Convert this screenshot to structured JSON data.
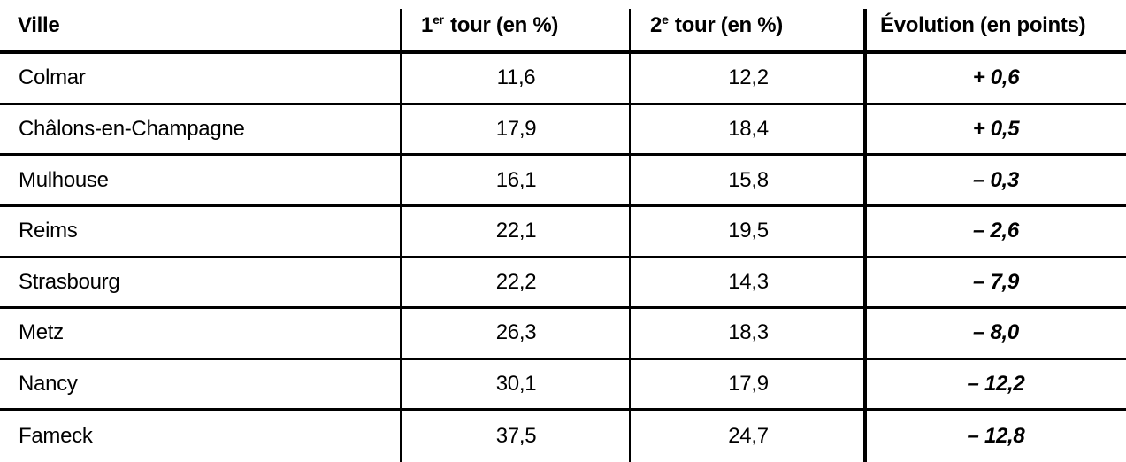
{
  "colors": {
    "text": "#000000",
    "lines": "#000000",
    "background": "#ffffff"
  },
  "table": {
    "columns": [
      {
        "label": "Ville"
      },
      {
        "base": "1",
        "sup": "er",
        "rest": " tour (en %)"
      },
      {
        "base": "2",
        "sup": "e",
        "rest": " tour (en %)"
      },
      {
        "label": "Évolution (en points)"
      }
    ],
    "rows": [
      {
        "ville": "Colmar",
        "tour1": "11,6",
        "tour2": "12,2",
        "evolution": "+ 0,6"
      },
      {
        "ville": "Châlons-en-Champagne",
        "tour1": "17,9",
        "tour2": "18,4",
        "evolution": "+ 0,5"
      },
      {
        "ville": "Mulhouse",
        "tour1": "16,1",
        "tour2": "15,8",
        "evolution": "– 0,3"
      },
      {
        "ville": "Reims",
        "tour1": "22,1",
        "tour2": "19,5",
        "evolution": "– 2,6"
      },
      {
        "ville": "Strasbourg",
        "tour1": "22,2",
        "tour2": "14,3",
        "evolution": "– 7,9"
      },
      {
        "ville": "Metz",
        "tour1": "26,3",
        "tour2": "18,3",
        "evolution": "– 8,0"
      },
      {
        "ville": "Nancy",
        "tour1": "30,1",
        "tour2": "17,9",
        "evolution": "– 12,2"
      },
      {
        "ville": "Fameck",
        "tour1": "37,5",
        "tour2": "24,7",
        "evolution": "– 12,8"
      }
    ]
  },
  "chart_data": {
    "type": "table",
    "title": "",
    "columns": [
      "Ville",
      "1er tour (en %)",
      "2e tour (en %)",
      "Évolution (en points)"
    ],
    "rows": [
      [
        "Colmar",
        11.6,
        12.2,
        0.6
      ],
      [
        "Châlons-en-Champagne",
        17.9,
        18.4,
        0.5
      ],
      [
        "Mulhouse",
        16.1,
        15.8,
        -0.3
      ],
      [
        "Reims",
        22.1,
        19.5,
        -2.6
      ],
      [
        "Strasbourg",
        22.2,
        14.3,
        -7.9
      ],
      [
        "Metz",
        26.3,
        18.3,
        -8.0
      ],
      [
        "Nancy",
        30.1,
        17.9,
        -12.2
      ],
      [
        "Fameck",
        37.5,
        24.7,
        -12.8
      ]
    ]
  }
}
